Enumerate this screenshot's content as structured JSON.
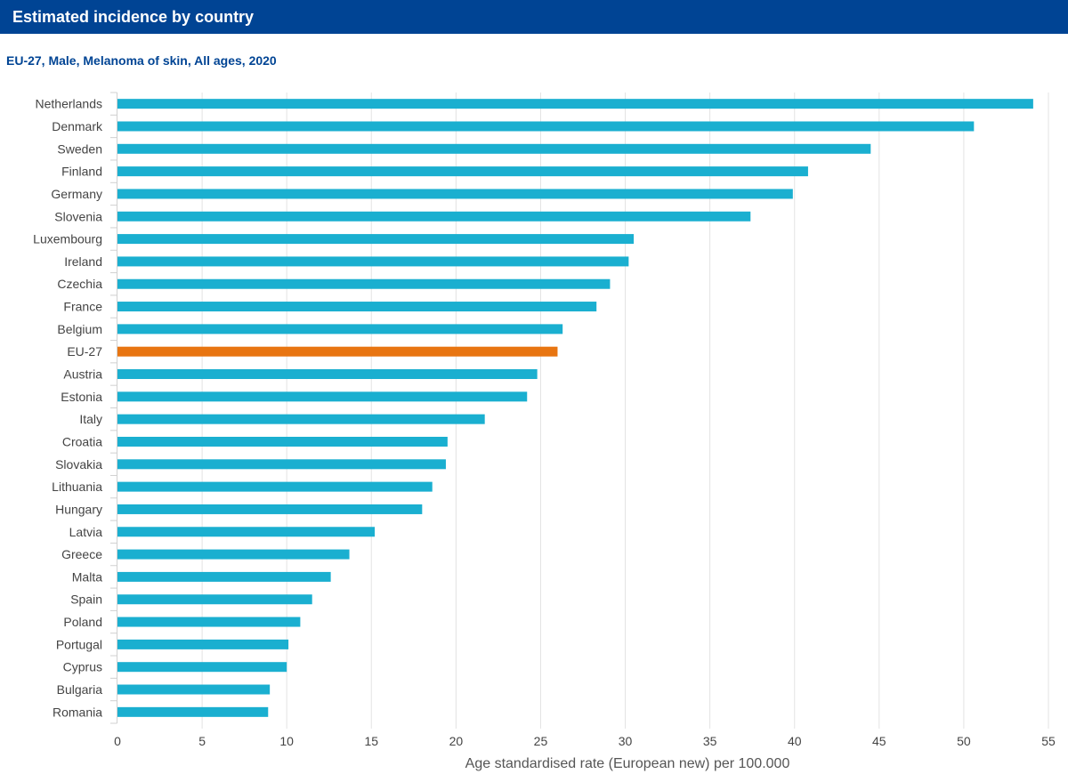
{
  "header": {
    "title": "Estimated incidence by country"
  },
  "chart_data": {
    "type": "bar",
    "orientation": "horizontal",
    "title": "EU-27, Male, Melanoma of skin, All ages, 2020",
    "xlabel": "Age standardised rate (European new) per 100.000",
    "ylabel": "",
    "xlim": [
      0,
      55
    ],
    "xticks": [
      0,
      5,
      10,
      15,
      20,
      25,
      30,
      35,
      40,
      45,
      50,
      55
    ],
    "grid": true,
    "categories": [
      "Netherlands",
      "Denmark",
      "Sweden",
      "Finland",
      "Germany",
      "Slovenia",
      "Luxembourg",
      "Ireland",
      "Czechia",
      "France",
      "Belgium",
      "EU-27",
      "Austria",
      "Estonia",
      "Italy",
      "Croatia",
      "Slovakia",
      "Lithuania",
      "Hungary",
      "Latvia",
      "Greece",
      "Malta",
      "Spain",
      "Poland",
      "Portugal",
      "Cyprus",
      "Bulgaria",
      "Romania"
    ],
    "values": [
      54.1,
      50.6,
      44.5,
      40.8,
      39.9,
      37.4,
      30.5,
      30.2,
      29.1,
      28.3,
      26.3,
      26.0,
      24.8,
      24.2,
      21.7,
      19.5,
      19.4,
      18.6,
      18.0,
      15.2,
      13.7,
      12.6,
      11.5,
      10.8,
      10.1,
      10.0,
      9.0,
      8.9
    ],
    "colors": {
      "default": "#1aafd0",
      "highlight": "#e87511",
      "grid": "#e3e3e3"
    },
    "highlight_category": "EU-27"
  }
}
